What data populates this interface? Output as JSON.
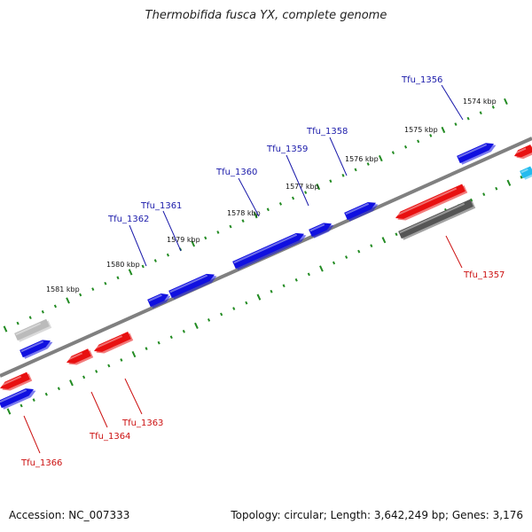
{
  "title": "Thermobifida fusca YX, complete genome",
  "footer": {
    "accession": "Accession: NC_007333",
    "topology": "Topology: circular; Length: 3,642,249 bp; Genes: 3,176"
  },
  "colors": {
    "forward": "#1010e0",
    "reverse": "#e81010",
    "dark_gray": "#555555",
    "light_gray": "#bbbbbb",
    "cyan": "#22bbee",
    "tick": "#228b22",
    "backbone": "#808080",
    "label_forward": "#1a1aaa",
    "label_reverse": "#cc1111"
  },
  "kbp_labels": [
    "1574 kbp",
    "1575 kbp",
    "1576 kbp",
    "1577 kbp",
    "1578 kbp",
    "1579 kbp",
    "1580 kbp",
    "1581 kbp"
  ],
  "gene_labels": {
    "forward": [
      "Tfu_1356",
      "Tfu_1358",
      "Tfu_1359",
      "Tfu_1360",
      "Tfu_1361",
      "Tfu_1362"
    ],
    "reverse": [
      "Tfu_1357",
      "Tfu_1363",
      "Tfu_1364",
      "Tfu_1366"
    ]
  }
}
